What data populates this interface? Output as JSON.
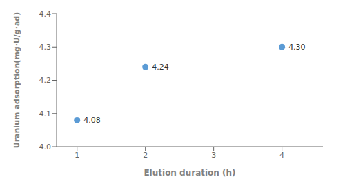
{
  "chart_data": {
    "type": "scatter",
    "x": [
      1,
      2,
      4
    ],
    "values": [
      4.08,
      4.24,
      4.3
    ],
    "value_labels": [
      "4.08",
      "4.24",
      "4.30"
    ],
    "data_labels": true,
    "color": "#5b9bd5",
    "marker": "circle",
    "xlabel": "Elution duration (h)",
    "ylabel": "Uranium adsorption(mg·U/g·ad)",
    "xlim": [
      0.7,
      4.6
    ],
    "ylim": [
      4.0,
      4.4
    ],
    "xticks": [
      1,
      2,
      3,
      4
    ],
    "yticks": [
      {
        "value": 4.0,
        "label": "4.0"
      },
      4.1,
      4.2,
      4.3,
      {
        "value": 4.4,
        "label": "4.4"
      }
    ],
    "grid": false
  }
}
